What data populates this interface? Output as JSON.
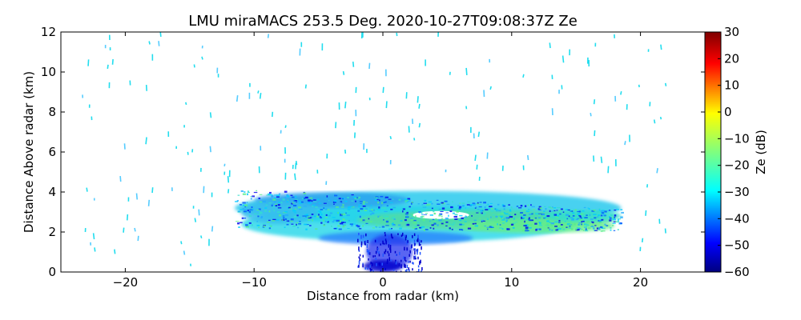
{
  "chart_data": {
    "type": "heatmap",
    "title": "LMU miraMACS 253.5 Deg. 2020-10-27T09:08:37Z  Ze",
    "xlabel": "Distance from radar (km)",
    "ylabel": "Distance Above radar  (km)",
    "xlim": [
      -25,
      25
    ],
    "ylim": [
      0,
      12
    ],
    "xticks": [
      -20,
      -10,
      0,
      10,
      20
    ],
    "yticks": [
      0,
      2,
      4,
      6,
      8,
      10,
      12
    ],
    "colorbar": {
      "label": "Ze (dB)",
      "range": [
        -60,
        30
      ],
      "ticks": [
        30,
        20,
        10,
        0,
        -10,
        -20,
        -30,
        -40,
        -50,
        -60
      ],
      "colormap": [
        "#00007f",
        "#0000ff",
        "#007fff",
        "#00ffff",
        "#7fff7f",
        "#ffff00",
        "#ff7f00",
        "#ff0000",
        "#7f0000"
      ]
    },
    "features": [
      {
        "name": "cloud-layer",
        "x_range": [
          -11,
          18
        ],
        "height_range_km": [
          1.6,
          4.2
        ],
        "ze_range_db": [
          -40,
          -20
        ]
      },
      {
        "name": "near-radar-core",
        "x_range": [
          -2,
          3
        ],
        "height_range_km": [
          0,
          2
        ],
        "ze_range_db": [
          -55,
          -35
        ]
      },
      {
        "name": "scattered-clutter",
        "height_range_km": [
          4,
          12
        ],
        "ze_range_db": [
          -35,
          -25
        ]
      }
    ]
  }
}
